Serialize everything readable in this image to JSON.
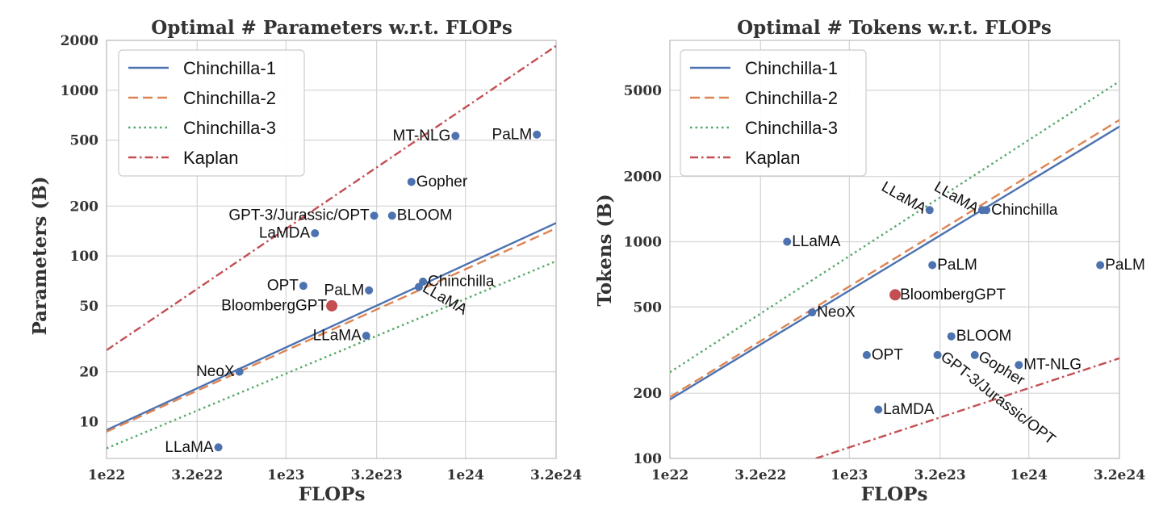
{
  "chart_data": [
    {
      "type": "scatter",
      "title": "Optimal # Parameters w.r.t. FLOPs",
      "xlabel": "FLOPs",
      "ylabel": "Parameters (B)",
      "xscale": "log",
      "yscale": "log",
      "xlim": [
        1e+22,
        3.2e+24
      ],
      "ylim": [
        6,
        2000
      ],
      "grid": true,
      "legend_position": "top-left",
      "xticks": [
        {
          "value": 1e+22,
          "label": "1e22"
        },
        {
          "value": 3.2e+22,
          "label": "3.2e22"
        },
        {
          "value": 1e+23,
          "label": "1e23"
        },
        {
          "value": 3.2e+23,
          "label": "3.2e23"
        },
        {
          "value": 1e+24,
          "label": "1e24"
        },
        {
          "value": 3.2e+24,
          "label": "3.2e24"
        }
      ],
      "yticks": [
        {
          "value": 10,
          "label": "10"
        },
        {
          "value": 20,
          "label": "20"
        },
        {
          "value": 50,
          "label": "50"
        },
        {
          "value": 100,
          "label": "100"
        },
        {
          "value": 200,
          "label": "200"
        },
        {
          "value": 500,
          "label": "500"
        },
        {
          "value": 1000,
          "label": "1000"
        },
        {
          "value": 2000,
          "label": "2000"
        }
      ],
      "series": [
        {
          "name": "Chinchilla-1",
          "color": "#4c72b0",
          "dash": "solid",
          "x": [
            1e+22,
            3.2e+24
          ],
          "y": [
            8.9,
            158
          ]
        },
        {
          "name": "Chinchilla-2",
          "color": "#dd8452",
          "dash": "dashed",
          "x": [
            1e+22,
            3.2e+24
          ],
          "y": [
            8.7,
            147
          ]
        },
        {
          "name": "Chinchilla-3",
          "color": "#55a868",
          "dash": "dotted",
          "x": [
            1e+22,
            3.2e+24
          ],
          "y": [
            6.9,
            93
          ]
        },
        {
          "name": "Kaplan",
          "color": "#c44e52",
          "dash": "dashdot",
          "x": [
            1e+22,
            3.2e+24
          ],
          "y": [
            27,
            1850
          ]
        }
      ],
      "points": [
        {
          "label": "LLaMA",
          "x": 4.2e+22,
          "y": 7,
          "color": "#4c72b0",
          "anchor": "end",
          "angle": 0
        },
        {
          "label": "NeoX",
          "x": 5.5e+22,
          "y": 20,
          "color": "#4c72b0",
          "anchor": "end",
          "angle": 0
        },
        {
          "label": "OPT",
          "x": 1.25e+23,
          "y": 66,
          "color": "#4c72b0",
          "anchor": "end",
          "angle": 0
        },
        {
          "label": "LaMDA",
          "x": 1.45e+23,
          "y": 137,
          "color": "#4c72b0",
          "anchor": "end",
          "angle": 0
        },
        {
          "label": "BloombergGPT",
          "x": 1.8e+23,
          "y": 50,
          "color": "#c44e52",
          "anchor": "end",
          "angle": 0,
          "big": true
        },
        {
          "label": "GPT-3/Jurassic/OPT",
          "x": 3.1e+23,
          "y": 175,
          "color": "#4c72b0",
          "anchor": "end",
          "angle": 0
        },
        {
          "label": "BLOOM",
          "x": 3.9e+23,
          "y": 175,
          "color": "#4c72b0",
          "anchor": "start",
          "angle": 0
        },
        {
          "label": "Gopher",
          "x": 5e+23,
          "y": 280,
          "color": "#4c72b0",
          "anchor": "start",
          "angle": 0
        },
        {
          "label": "MT-NLG",
          "x": 8.8e+23,
          "y": 530,
          "color": "#4c72b0",
          "anchor": "end",
          "angle": 0
        },
        {
          "label": "PaLM",
          "x": 2.5e+24,
          "y": 540,
          "color": "#4c72b0",
          "anchor": "end",
          "angle": 0
        },
        {
          "label": "PaLM",
          "x": 2.9e+23,
          "y": 62,
          "color": "#4c72b0",
          "anchor": "end",
          "angle": 0
        },
        {
          "label": "LLaMA",
          "x": 2.8e+23,
          "y": 33,
          "color": "#4c72b0",
          "anchor": "end",
          "angle": 0
        },
        {
          "label": "LLaMA",
          "x": 5.5e+23,
          "y": 65,
          "color": "#4c72b0",
          "anchor": "start",
          "angle": 30
        },
        {
          "label": "Chinchilla",
          "x": 5.8e+23,
          "y": 70,
          "color": "#4c72b0",
          "anchor": "start",
          "angle": 0
        }
      ]
    },
    {
      "type": "scatter",
      "title": "Optimal # Tokens w.r.t. FLOPs",
      "xlabel": "FLOPs",
      "ylabel": "Tokens (B)",
      "xscale": "log",
      "yscale": "log",
      "xlim": [
        1e+22,
        3.2e+24
      ],
      "ylim": [
        100,
        8500
      ],
      "grid": true,
      "legend_position": "top-left",
      "xticks": [
        {
          "value": 1e+22,
          "label": "1e22"
        },
        {
          "value": 3.2e+22,
          "label": "3.2e22"
        },
        {
          "value": 1e+23,
          "label": "1e23"
        },
        {
          "value": 3.2e+23,
          "label": "3.2e23"
        },
        {
          "value": 1e+24,
          "label": "1e24"
        },
        {
          "value": 3.2e+24,
          "label": "3.2e24"
        }
      ],
      "yticks": [
        {
          "value": 100,
          "label": "100"
        },
        {
          "value": 200,
          "label": "200"
        },
        {
          "value": 500,
          "label": "500"
        },
        {
          "value": 1000,
          "label": "1000"
        },
        {
          "value": 2000,
          "label": "2000"
        },
        {
          "value": 5000,
          "label": "5000"
        }
      ],
      "series": [
        {
          "name": "Chinchilla-1",
          "color": "#4c72b0",
          "dash": "solid",
          "x": [
            1e+22,
            3.2e+24
          ],
          "y": [
            187,
            3400
          ]
        },
        {
          "name": "Chinchilla-2",
          "color": "#dd8452",
          "dash": "dashed",
          "x": [
            1e+22,
            3.2e+24
          ],
          "y": [
            192,
            3650
          ]
        },
        {
          "name": "Chinchilla-3",
          "color": "#55a868",
          "dash": "dotted",
          "x": [
            1e+22,
            3.2e+24
          ],
          "y": [
            250,
            5500
          ]
        },
        {
          "name": "Kaplan",
          "color": "#c44e52",
          "dash": "dashdot",
          "x": [
            6.5e+22,
            3.2e+24
          ],
          "y": [
            100,
            290
          ]
        }
      ],
      "points": [
        {
          "label": "LLaMA",
          "x": 4.5e+22,
          "y": 1000,
          "color": "#4c72b0",
          "anchor": "start",
          "angle": 0
        },
        {
          "label": "NeoX",
          "x": 6.2e+22,
          "y": 472,
          "color": "#4c72b0",
          "anchor": "start",
          "angle": 0
        },
        {
          "label": "OPT",
          "x": 1.25e+23,
          "y": 300,
          "color": "#4c72b0",
          "anchor": "start",
          "angle": 0
        },
        {
          "label": "LaMDA",
          "x": 1.45e+23,
          "y": 168,
          "color": "#4c72b0",
          "anchor": "start",
          "angle": 0
        },
        {
          "label": "BloombergGPT",
          "x": 1.8e+23,
          "y": 569,
          "color": "#c44e52",
          "anchor": "start",
          "angle": 0,
          "big": true
        },
        {
          "label": "LLaMA",
          "x": 2.8e+23,
          "y": 1400,
          "color": "#4c72b0",
          "anchor": "end",
          "angle": 30
        },
        {
          "label": "PaLM",
          "x": 2.9e+23,
          "y": 780,
          "color": "#4c72b0",
          "anchor": "start",
          "angle": 0
        },
        {
          "label": "GPT-3/Jurassic/OPT",
          "x": 3.1e+23,
          "y": 300,
          "color": "#4c72b0",
          "anchor": "start",
          "angle": 38
        },
        {
          "label": "BLOOM",
          "x": 3.7e+23,
          "y": 366,
          "color": "#4c72b0",
          "anchor": "start",
          "angle": 0
        },
        {
          "label": "Gopher",
          "x": 5e+23,
          "y": 300,
          "color": "#4c72b0",
          "anchor": "start",
          "angle": 32
        },
        {
          "label": "LLaMA",
          "x": 5.5e+23,
          "y": 1400,
          "color": "#4c72b0",
          "anchor": "end",
          "angle": 30
        },
        {
          "label": "Chinchilla",
          "x": 5.8e+23,
          "y": 1400,
          "color": "#4c72b0",
          "anchor": "start",
          "angle": 0
        },
        {
          "label": "MT-NLG",
          "x": 8.8e+23,
          "y": 270,
          "color": "#4c72b0",
          "anchor": "start",
          "angle": 0
        },
        {
          "label": "PaLM",
          "x": 2.5e+24,
          "y": 780,
          "color": "#4c72b0",
          "anchor": "start",
          "angle": 0
        }
      ]
    }
  ]
}
